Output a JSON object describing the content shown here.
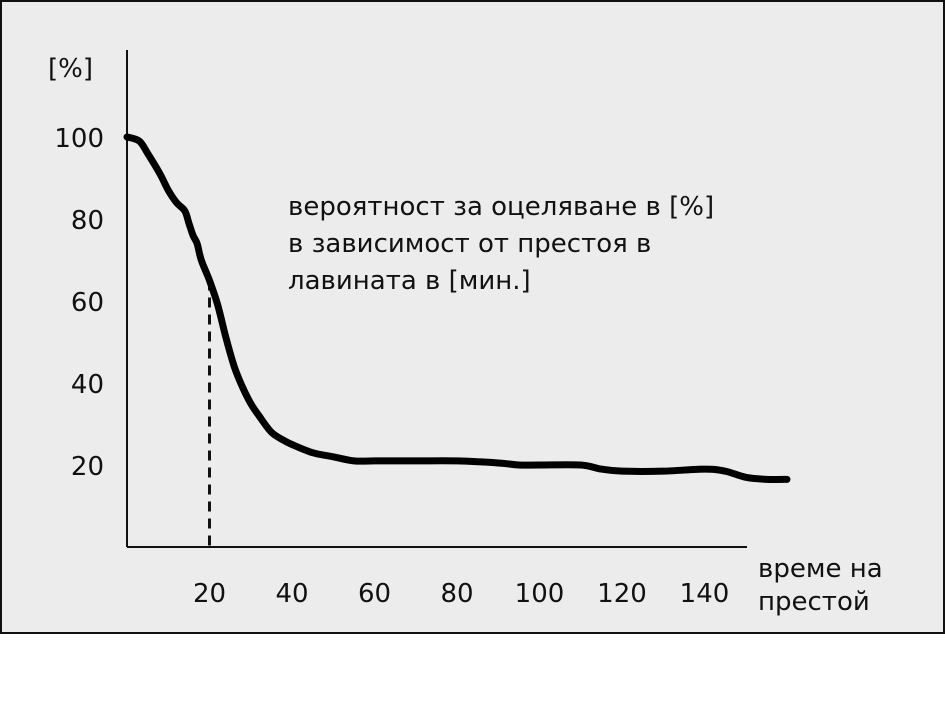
{
  "chart_data": {
    "type": "line",
    "ylabel": "[%]",
    "xlabel_lines": [
      "време на",
      "престой"
    ],
    "annotation_lines": [
      "вероятност за оцеляване в [%]",
      "в зависимост от престоя в",
      "лавината в [мин.]"
    ],
    "x_ticks": [
      "20",
      "40",
      "60",
      "80",
      "100",
      "120",
      "140"
    ],
    "y_ticks": [
      "100",
      "80",
      "60",
      "40",
      "20"
    ],
    "xlim": [
      0,
      160
    ],
    "ylim": [
      0,
      100
    ],
    "grid": false,
    "marker_x": 20,
    "series": [
      {
        "x": [
          0,
          3,
          5,
          8,
          10,
          12,
          14,
          15,
          16,
          17,
          18,
          20,
          22,
          24,
          26,
          28,
          30,
          32,
          35,
          38,
          40,
          45,
          50,
          55,
          60,
          70,
          80,
          90,
          95,
          100,
          110,
          115,
          120,
          130,
          140,
          145,
          150,
          155,
          160
        ],
        "y": [
          100,
          99,
          96,
          91,
          87,
          84,
          82,
          79,
          76,
          74,
          70,
          65,
          59,
          51,
          44,
          39,
          35,
          32,
          28,
          26,
          25,
          23,
          22,
          21,
          21,
          21,
          21,
          20.5,
          20,
          20,
          20,
          19,
          18.5,
          18.5,
          19,
          18.5,
          17,
          16.5,
          16.5
        ]
      }
    ]
  }
}
